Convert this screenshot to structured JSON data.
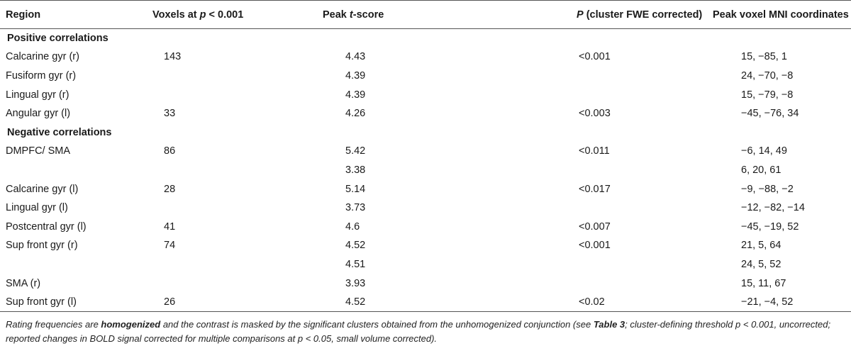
{
  "table": {
    "headers": {
      "region": "Region",
      "voxels_prefix": "Voxels at ",
      "voxels_p": "p",
      "voxels_suffix": " < 0.001",
      "peak_prefix": "Peak ",
      "peak_t": "t",
      "peak_suffix": "-score",
      "p_label": "P",
      "p_suffix": " (cluster FWE corrected)",
      "mni": "Peak voxel MNI coordinates"
    },
    "positive_title": "Positive correlations",
    "negative_title": "Negative correlations",
    "positive_rows": [
      {
        "region": "Calcarine gyr (r)",
        "voxels": "143",
        "t": "4.43",
        "p": "<0.001",
        "mni": "15, −85, 1"
      },
      {
        "region": "Fusiform gyr (r)",
        "voxels": "",
        "t": "4.39",
        "p": "",
        "mni": "24, −70, −8"
      },
      {
        "region": "Lingual gyr (r)",
        "voxels": "",
        "t": "4.39",
        "p": "",
        "mni": "15, −79, −8"
      },
      {
        "region": "Angular gyr (l)",
        "voxels": "33",
        "t": "4.26",
        "p": "<0.003",
        "mni": "−45, −76, 34"
      }
    ],
    "negative_rows": [
      {
        "region": "DMPFC/ SMA",
        "voxels": "86",
        "t": "5.42",
        "p": "<0.011",
        "mni": "−6, 14, 49"
      },
      {
        "region": "",
        "voxels": "",
        "t": "3.38",
        "p": "",
        "mni": "6, 20, 61"
      },
      {
        "region": "Calcarine gyr (l)",
        "voxels": "28",
        "t": "5.14",
        "p": "<0.017",
        "mni": "−9, −88, −2"
      },
      {
        "region": "Lingual gyr (l)",
        "voxels": "",
        "t": "3.73",
        "p": "",
        "mni": "−12, −82, −14"
      },
      {
        "region": "Postcentral gyr (l)",
        "voxels": "41",
        "t": "4.6",
        "p": "<0.007",
        "mni": "−45, −19, 52"
      },
      {
        "region": "Sup front gyr (r)",
        "voxels": "74",
        "t": "4.52",
        "p": "<0.001",
        "mni": "21, 5, 64"
      },
      {
        "region": "",
        "voxels": "",
        "t": "4.51",
        "p": "",
        "mni": "24, 5, 52"
      },
      {
        "region": "SMA (r)",
        "voxels": "",
        "t": "3.93",
        "p": "",
        "mni": "15, 11, 67"
      },
      {
        "region": "Sup front gyr (l)",
        "voxels": "26",
        "t": "4.52",
        "p": "<0.02",
        "mni": "−21, −4, 52"
      }
    ]
  },
  "footnote": {
    "part1": "Rating frequencies are ",
    "bold1": "homogenized",
    "part2": " and the contrast is masked by the significant clusters obtained from the unhomogenized conjunction (see ",
    "bold2": "Table 3",
    "part3": "; cluster-defining threshold p < 0.001, uncorrected; reported changes in BOLD signal corrected for multiple comparisons at p < 0.05, small volume corrected)."
  }
}
